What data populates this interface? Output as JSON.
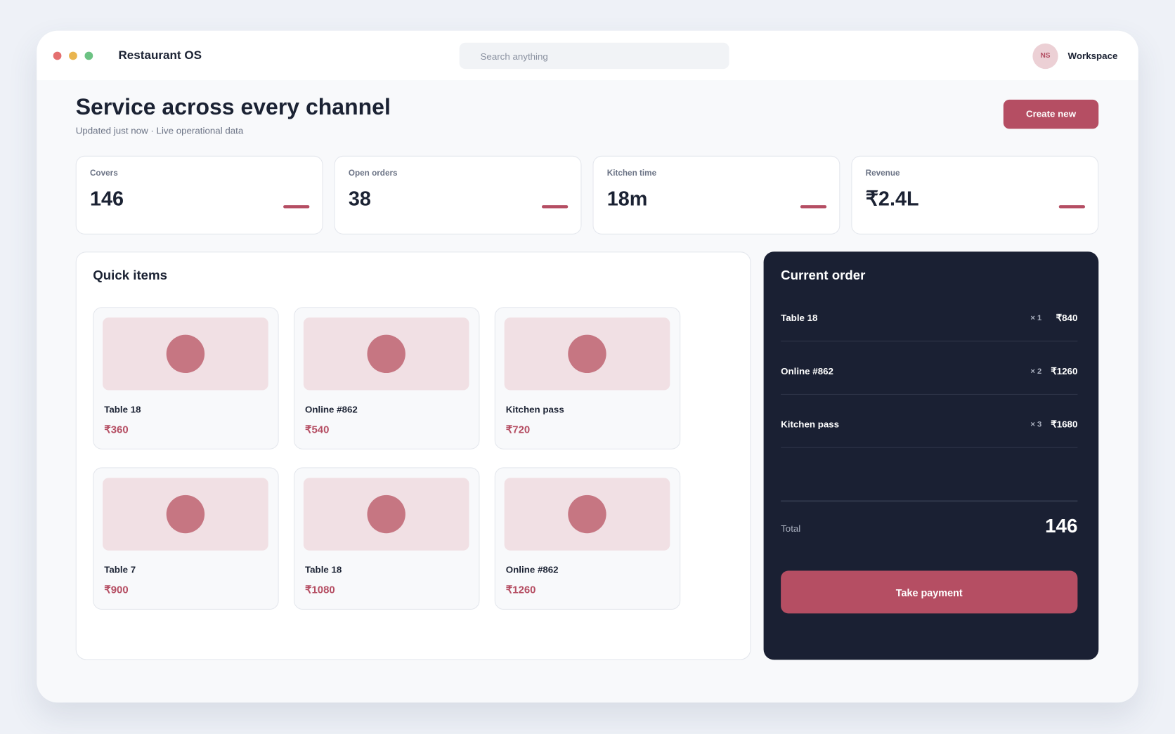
{
  "topbar": {
    "app_name": "Restaurant OS",
    "search_placeholder": "Search anything",
    "avatar": "NS",
    "workspace": "Workspace"
  },
  "header": {
    "title": "Service across every channel",
    "subtitle": "Updated just now · Live operational data",
    "button": "Create new"
  },
  "stats": [
    {
      "label": "Covers",
      "value": "146"
    },
    {
      "label": "Open orders",
      "value": "38"
    },
    {
      "label": "Kitchen time",
      "value": "18m"
    },
    {
      "label": "Revenue",
      "value": "₹2.4L"
    }
  ],
  "quick_items": {
    "title": "Quick items",
    "items": [
      {
        "name": "Table 18",
        "price": "₹360"
      },
      {
        "name": "Online #862",
        "price": "₹540"
      },
      {
        "name": "Kitchen pass",
        "price": "₹720"
      },
      {
        "name": "Table 7",
        "price": "₹900"
      },
      {
        "name": "Table 18",
        "price": "₹1080"
      },
      {
        "name": "Online #862",
        "price": "₹1260"
      }
    ]
  },
  "current_order": {
    "title": "Current order",
    "lines": [
      {
        "name": "Table 18",
        "qty": "× 1",
        "price": "₹840"
      },
      {
        "name": "Online #862",
        "qty": "× 2",
        "price": "₹1260"
      },
      {
        "name": "Kitchen pass",
        "qty": "× 3",
        "price": "₹1680"
      }
    ],
    "total_label": "Total",
    "total_value": "146",
    "button": "Take payment"
  }
}
